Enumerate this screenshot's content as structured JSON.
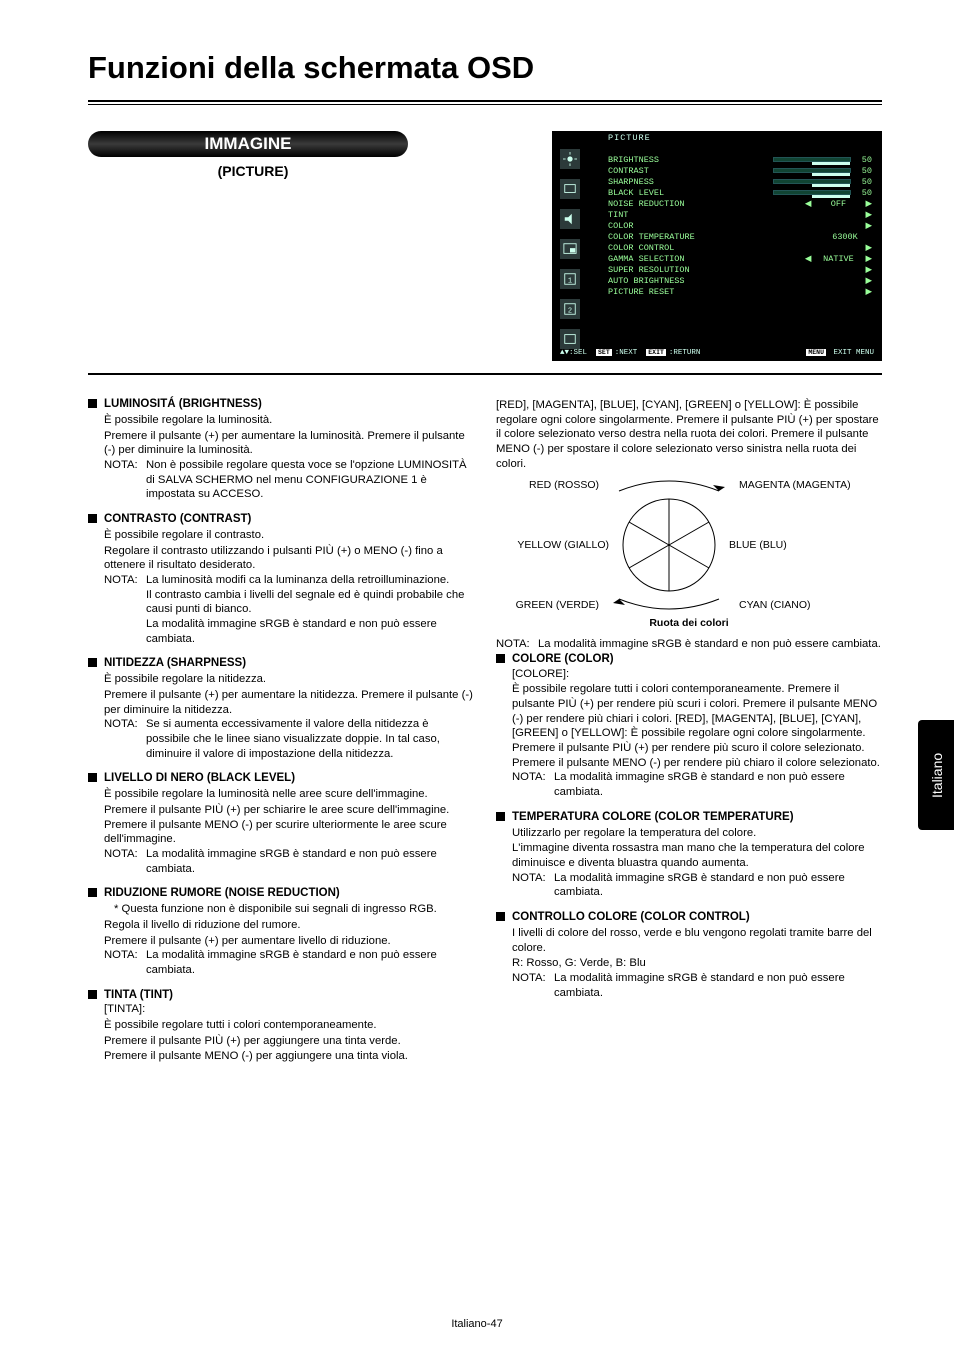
{
  "page": {
    "title": "Funzioni della schermata OSD",
    "pagenum": "Italiano-47",
    "sidetab": "Italiano"
  },
  "pill": {
    "label": "IMMAGINE",
    "sub": "(PICTURE)"
  },
  "osd": {
    "title": "PICTURE",
    "items": [
      "BRIGHTNESS",
      "CONTRAST",
      "SHARPNESS",
      "BLACK LEVEL",
      "NOISE REDUCTION",
      "TINT",
      "COLOR",
      "COLOR TEMPERATURE",
      "COLOR CONTROL",
      "GAMMA SELECTION",
      "SUPER RESOLUTION",
      "AUTO BRIGHTNESS",
      "PICTURE RESET"
    ],
    "bars": [
      "50",
      "50",
      "50",
      "50"
    ],
    "nr_value": "OFF",
    "ct_value": "6300K",
    "gamma_value": "NATIVE",
    "footer": {
      "l1": "▲▼:SEL",
      "l2": "SET :NEXT",
      "l3": "EXIT :RETURN",
      "r": "MENU EXIT MENU"
    },
    "right": {
      "items": [
        {
          "type": "bar",
          "v": "50"
        },
        {
          "type": "bar",
          "v": "50"
        },
        {
          "type": "bar",
          "v": "50"
        },
        {
          "type": "bar",
          "v": "50"
        },
        {
          "type": "val",
          "l": "◀",
          "v": "OFF",
          "r": "▶"
        },
        {
          "type": "arrow",
          "v": "▶"
        },
        {
          "type": "arrow",
          "v": "▶"
        },
        {
          "type": "val",
          "l": "",
          "v": "6300K",
          "r": ""
        },
        {
          "type": "arrow",
          "v": "▶"
        },
        {
          "type": "val",
          "l": "◀",
          "v": "NATIVE",
          "r": "▶"
        },
        {
          "type": "arrow",
          "v": "▶"
        },
        {
          "type": "arrow",
          "v": "▶"
        },
        {
          "type": "arrow",
          "v": "▶"
        }
      ]
    }
  },
  "left": [
    {
      "title": "LUMINOSITÁ (BRIGHTNESS)",
      "body": "È possibile regolare la luminosità.\nPremere il pulsante (+) per aumentare la luminosità. Premere il pulsante (-) per diminuire la luminosità.",
      "nota": "Non è possibile regolare questa voce se l'opzione LUMINOSITÀ di SALVA SCHERMO nel menu CONFIGURAZIONE 1 è impostata su ACCESO."
    },
    {
      "title": "CONTRASTO (CONTRAST)",
      "body": "È possibile regolare il contrasto.\nRegolare il contrasto utilizzando i pulsanti PIÙ (+) o MENO (-) fino a ottenere il risultato desiderato.",
      "nota": "La luminosità modifi ca la luminanza della retroilluminazione.\nIl contrasto cambia i livelli del segnale ed è quindi probabile che causi punti di bianco.\nLa modalità immagine sRGB è standard e non può essere cambiata."
    },
    {
      "title": "NITIDEZZA (SHARPNESS)",
      "body": "È possibile regolare la nitidezza.\nPremere il pulsante (+) per aumentare la nitidezza. Premere il pulsante (-) per diminuire la nitidezza.",
      "nota": "Se si aumenta eccessivamente il valore della nitidezza è possibile che le linee siano visualizzate doppie. In tal caso, diminuire il valore di impostazione della nitidezza."
    },
    {
      "title": "LIVELLO DI NERO (BLACK LEVEL)",
      "body": "È possibile regolare la luminosità nelle aree scure dell'immagine.\nPremere il pulsante PIÙ (+) per schiarire le aree scure dell'immagine. Premere il pulsante MENO (-) per scurire ulteriormente le aree scure dell'immagine.",
      "nota": "La modalità immagine sRGB è standard e non può essere cambiata."
    },
    {
      "title": "RIDUZIONE RUMORE (NOISE REDUCTION)",
      "pre": "* Questa funzione non è disponibile sui segnali di ingresso RGB.",
      "body": "Regola il livello di riduzione del rumore.\nPremere il pulsante (+) per aumentare livello di riduzione.",
      "nota": "La modalità immagine sRGB è standard e non può essere cambiata."
    },
    {
      "title": "TINTA (TINT)",
      "sub": "[TINTA]:",
      "body": "È possibile regolare tutti i colori contemporaneamente.\nPremere il pulsante PIÙ (+) per aggiungere una tinta verde.\nPremere il pulsante MENO (-) per aggiungere una tinta viola."
    }
  ],
  "right_top": "[RED], [MAGENTA], [BLUE], [CYAN], [GREEN] o [YELLOW]: È possibile regolare ogni colore singolarmente. Premere il pulsante PIÙ (+) per spostare il colore selezionato verso destra nella ruota dei colori. Premere il pulsante MENO (-) per spostare il colore selezionato verso sinistra nella ruota dei colori.",
  "wheel": {
    "red": "RED (ROSSO)",
    "magenta": "MAGENTA (MAGENTA)",
    "yellow": "YELLOW (GIALLO)",
    "blue": "BLUE (BLU)",
    "green": "GREEN (VERDE)",
    "cyan": "CYAN (CIANO)",
    "caption": "Ruota dei colori"
  },
  "right_nota1": "La modalità immagine sRGB è standard e non può essere cambiata.",
  "right": [
    {
      "title": "COLORE (COLOR)",
      "sub": "[COLORE]:",
      "body": "È possibile regolare tutti i colori contemporaneamente. Premere il pulsante PIÙ (+) per rendere più scuri i colori. Premere il pulsante MENO (-) per rendere più chiari i colori. [RED], [MAGENTA], [BLUE], [CYAN], [GREEN] o [YELLOW]: È possibile regolare ogni colore singolarmente. Premere il pulsante PIÙ (+) per rendere più scuro il colore selezionato. Premere il pulsante MENO (-) per rendere più chiaro il colore selezionato.",
      "nota": "La modalità immagine sRGB è standard e non può essere cambiata."
    },
    {
      "title": "TEMPERATURA COLORE (COLOR TEMPERATURE)",
      "body": "Utilizzarlo per regolare la temperatura del colore.\nL'immagine diventa rossastra man mano che la temperatura del colore diminuisce e diventa bluastra quando aumenta.",
      "nota": "La modalità immagine sRGB è standard e non può essere cambiata."
    },
    {
      "title": "CONTROLLO COLORE (COLOR CONTROL)",
      "body": "I livelli di colore del rosso, verde e blu vengono regolati tramite barre del colore.\nR: Rosso, G: Verde, B: Blu",
      "nota": "La modalità immagine sRGB è standard e non può essere cambiata."
    }
  ],
  "labels": {
    "nota": "NOTA:"
  }
}
